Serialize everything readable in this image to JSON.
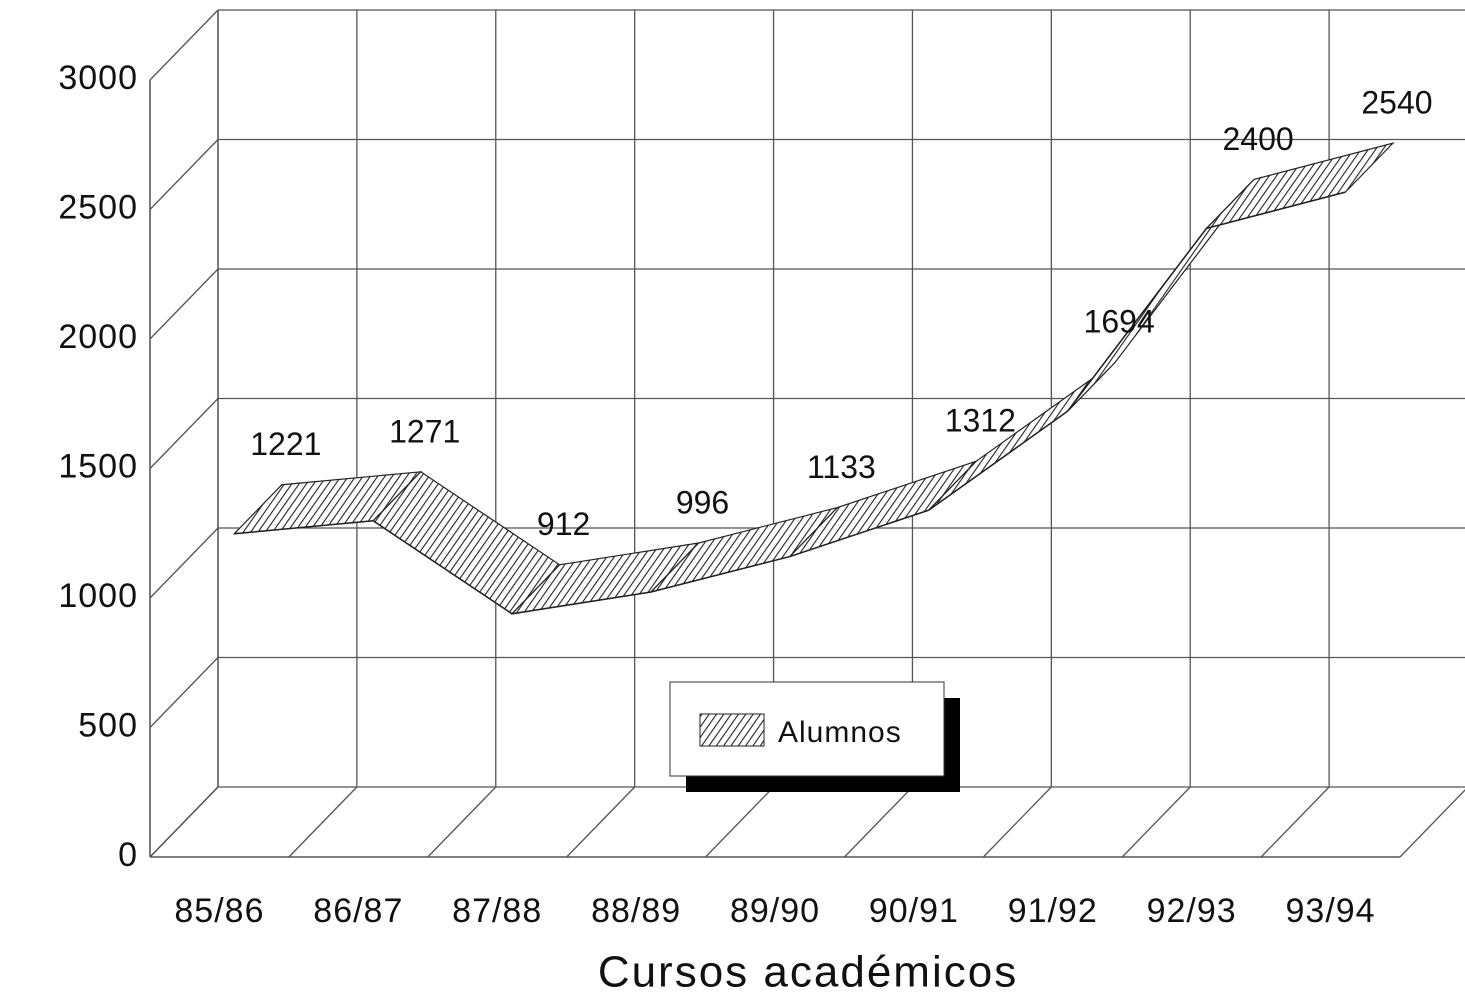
{
  "chart_data": {
    "type": "line3d",
    "x_label": "Cursos académicos",
    "categories": [
      "85/86",
      "86/87",
      "87/88",
      "88/89",
      "89/90",
      "90/91",
      "91/92",
      "92/93",
      "93/94"
    ],
    "series": [
      {
        "name": "Alumnos",
        "color": "#222222",
        "values": [
          1221,
          1271,
          912,
          996,
          1133,
          1312,
          1694,
          2400,
          2540
        ]
      }
    ],
    "ylim": [
      0,
      3000
    ],
    "yticks": [
      0,
      500,
      1000,
      1500,
      2000,
      2500,
      3000
    ],
    "grid": true,
    "legend": "bottom"
  }
}
